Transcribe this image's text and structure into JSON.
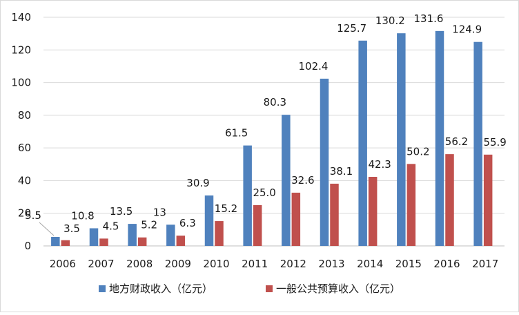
{
  "chart_data": {
    "type": "bar",
    "title": "",
    "xlabel": "",
    "ylabel": "",
    "categories": [
      "2006",
      "2007",
      "2008",
      "2009",
      "2010",
      "2011",
      "2012",
      "2013",
      "2014",
      "2015",
      "2016",
      "2017"
    ],
    "series": [
      {
        "name": "地方财政收入（亿元）",
        "color": "#4F81BD",
        "values": [
          5.5,
          10.8,
          13.5,
          13,
          30.9,
          61.5,
          80.3,
          102.4,
          125.7,
          130.2,
          131.6,
          124.9
        ],
        "labels": [
          "5.5",
          "10.8",
          "13.5",
          "13",
          "30.9",
          "61.5",
          "80.3",
          "102.4",
          "125.7",
          "130.2",
          "131.6",
          "124.9"
        ]
      },
      {
        "name": "一般公共预算收入（亿元）",
        "color": "#C0504D",
        "values": [
          3.5,
          4.5,
          5.2,
          6.3,
          15.2,
          25.0,
          32.6,
          38.1,
          42.3,
          50.2,
          56.2,
          55.9
        ],
        "labels": [
          "3.5",
          "4.5",
          "5.2",
          "6.3",
          "15.2",
          "25.0",
          "32.6",
          "38.1",
          "42.3",
          "50.2",
          "56.2",
          "55.9"
        ]
      }
    ],
    "ylim": [
      0,
      140
    ],
    "yticks": [
      "0",
      "20",
      "40",
      "60",
      "80",
      "100",
      "120",
      "140"
    ],
    "grid": true,
    "grid_color": "#d9d9d9",
    "legend_position": "bottom"
  }
}
